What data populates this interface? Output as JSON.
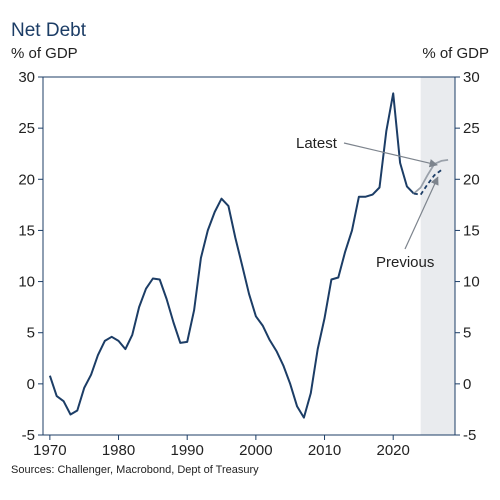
{
  "chart_data": {
    "type": "line",
    "title": "Net Debt",
    "ylabel_left": "% of GDP",
    "ylabel_right": "% of GDP",
    "xlim": [
      1969,
      2029
    ],
    "ylim": [
      -5,
      30
    ],
    "x_ticks": [
      1970,
      1980,
      1990,
      2000,
      2010,
      2020
    ],
    "y_ticks": [
      -5,
      0,
      5,
      10,
      15,
      20,
      25,
      30
    ],
    "grid": false,
    "shaded_region": {
      "x_start": 2024,
      "x_end": 2029,
      "color": "#e9ebee"
    },
    "series": [
      {
        "name": "",
        "color": "#1c3d66",
        "style": "solid",
        "x": [
          1970,
          1971,
          1972,
          1973,
          1974,
          1975,
          1976,
          1977,
          1978,
          1979,
          1980,
          1981,
          1982,
          1983,
          1984,
          1985,
          1986,
          1987,
          1988,
          1989,
          1990,
          1991,
          1992,
          1993,
          1994,
          1995,
          1996,
          1997,
          1998,
          1999,
          2000,
          2001,
          2002,
          2003,
          2004,
          2005,
          2006,
          2007,
          2008,
          2009,
          2010,
          2011,
          2012,
          2013,
          2014,
          2015,
          2016,
          2017,
          2018,
          2019,
          2020,
          2021,
          2022,
          2023
        ],
        "y": [
          0.8,
          -1.2,
          -1.7,
          -3.0,
          -2.6,
          -0.4,
          0.9,
          2.8,
          4.2,
          4.6,
          4.2,
          3.4,
          4.8,
          7.5,
          9.3,
          10.3,
          10.2,
          8.3,
          6.0,
          4.0,
          4.1,
          7.2,
          12.3,
          15.0,
          16.8,
          18.1,
          17.4,
          14.3,
          11.6,
          8.8,
          6.6,
          5.7,
          4.3,
          3.2,
          1.8,
          0.0,
          -2.2,
          -3.3,
          -0.9,
          3.4,
          6.4,
          10.2,
          10.4,
          12.9,
          15.0,
          18.3,
          18.3,
          18.5,
          19.2,
          24.7,
          28.4,
          21.6,
          19.3,
          18.6
        ]
      },
      {
        "name": "Latest",
        "color": "#9aa1aa",
        "style": "solid",
        "x": [
          2023,
          2024,
          2025,
          2026,
          2027,
          2028
        ],
        "y": [
          18.6,
          19.2,
          20.4,
          21.5,
          21.8,
          21.9
        ]
      },
      {
        "name": "Previous",
        "color": "#1c3d66",
        "style": "dashed",
        "x": [
          2023,
          2024,
          2025,
          2026,
          2027
        ],
        "y": [
          18.6,
          18.5,
          19.5,
          20.4,
          20.9
        ]
      }
    ],
    "annotations": [
      {
        "text": "Latest",
        "target_series": "Latest"
      },
      {
        "text": "Previous",
        "target_series": "Previous"
      }
    ],
    "source": "Sources: Challenger, Macrobond, Dept of Treasury"
  }
}
